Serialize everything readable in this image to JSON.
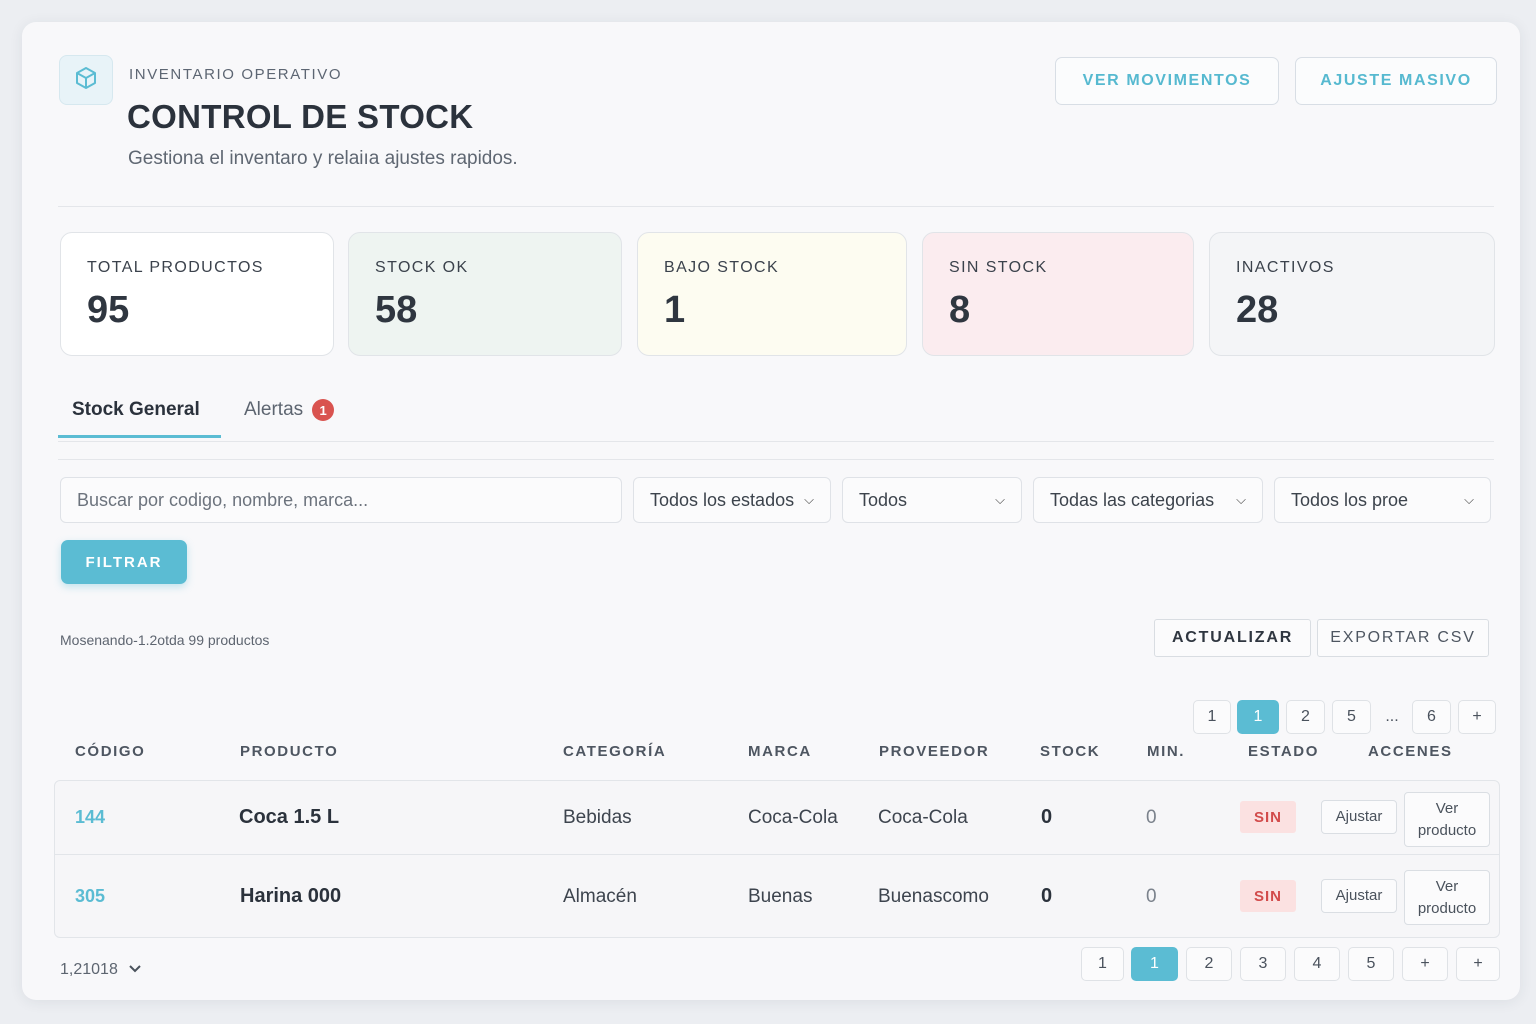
{
  "header": {
    "eyebrow": "INVENTARIO OPERATIVO",
    "title": "CONTROL DE STOCK",
    "subtitle": "Gestiona el inventaro y relaiıa ajustes rapidos.",
    "btn_movimientos": "VER MOVIMENTOS",
    "btn_ajuste": "AJUSTE MASIVO",
    "logo_icon": "box-icon"
  },
  "stats": [
    {
      "label": "TOTAL PRODUCTOS",
      "value": "95",
      "color": "#ffffff"
    },
    {
      "label": "STOCK OK",
      "value": "58",
      "color": "#eef4f1"
    },
    {
      "label": "BAJO STOCK",
      "value": "1",
      "color": "#fdfcf1"
    },
    {
      "label": "SIN STOCK",
      "value": "8",
      "color": "#fbecef"
    },
    {
      "label": "INACTIVOS",
      "value": "28",
      "color": "#f4f5f7"
    }
  ],
  "tabs": {
    "general": "Stock General",
    "alertas": "Alertas",
    "alertas_badge": "1"
  },
  "filters": {
    "search_placeholder": "Buscar por codigo, nombre, marca...",
    "estado": "Todos los estados",
    "tipo": "Todos",
    "categoria": "Todas las categorias",
    "proveedor": "Todos los proe",
    "btn_filtrar": "FILTRAR"
  },
  "toolbar": {
    "showing": "Mosenando-1.2otda 99 productos",
    "btn_actualizar": "ACTUALIZAR",
    "btn_exportar": "EXPORTAR CSV"
  },
  "pagination_top": [
    "1",
    "1",
    "2",
    "5",
    "...",
    "6",
    "+"
  ],
  "table": {
    "columns": [
      "CÓDIGO",
      "PRODUCTO",
      "CATEGORÍA",
      "MARCA",
      "PROVEEDOR",
      "STOCK",
      "MIN.",
      "ESTADO",
      "ACCENES"
    ],
    "rows": [
      {
        "codigo": "144",
        "producto": "Coca 1.5 L",
        "categoria": "Bebidas",
        "marca": "Coca-Cola",
        "proveedor": "Coca-Cola",
        "stock": "0",
        "min": "0",
        "estado": "SIN",
        "ajustar": "Ajustar",
        "ver": "Ver producto"
      },
      {
        "codigo": "305",
        "producto": "Harina 000",
        "categoria": "Almacén",
        "marca": "Buenas",
        "proveedor": "Buenascomo",
        "stock": "0",
        "min": "0",
        "estado": "SIN",
        "ajustar": "Ajustar",
        "ver": "Ver producto"
      }
    ]
  },
  "footer": {
    "per_page": "1,21018",
    "pagination": [
      "1",
      "1",
      "2",
      "3",
      "4",
      "5",
      "+",
      "+"
    ]
  },
  "colors": {
    "accent": "#5bbcd3",
    "danger": "#d9534f"
  }
}
